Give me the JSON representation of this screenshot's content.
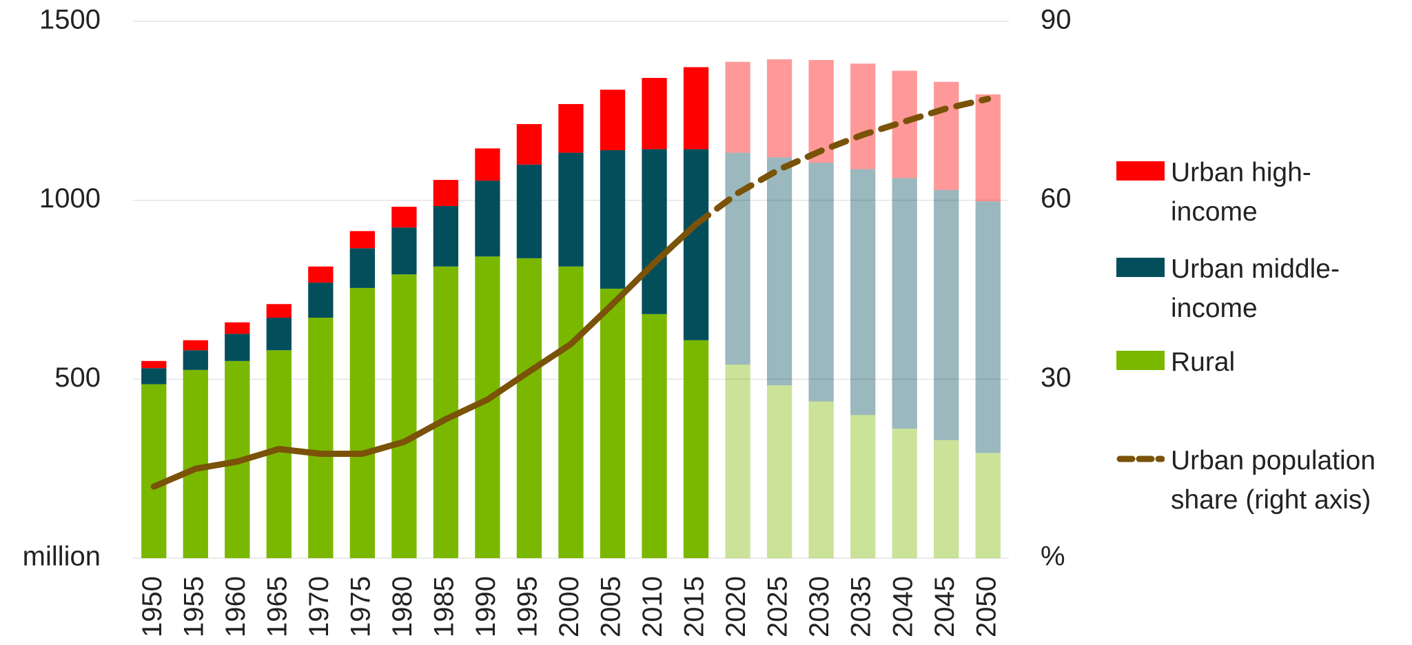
{
  "chart_data": {
    "type": "bar",
    "categories": [
      "1950",
      "1955",
      "1960",
      "1965",
      "1970",
      "1975",
      "1980",
      "1985",
      "1990",
      "1995",
      "2000",
      "2005",
      "2010",
      "2015",
      "2020",
      "2025",
      "2030",
      "2035",
      "2040",
      "2045",
      "2050"
    ],
    "projected_from": "2020",
    "series": [
      {
        "name": "Rural",
        "color": "#7ab800",
        "values": [
          486,
          526,
          551,
          581,
          672,
          755,
          793,
          815,
          843,
          838,
          815,
          753,
          682,
          609,
          541,
          483,
          438,
          400,
          362,
          330,
          294
        ]
      },
      {
        "name": "Urban middle-income",
        "color": "#034e5b",
        "values": [
          45,
          55,
          76,
          91,
          98,
          111,
          131,
          169,
          212,
          262,
          318,
          387,
          461,
          534,
          592,
          637,
          667,
          687,
          700,
          699,
          703
        ]
      },
      {
        "name": "Urban high-income",
        "color": "#ff0000",
        "values": [
          20,
          28,
          32,
          38,
          45,
          48,
          58,
          73,
          90,
          113,
          136,
          169,
          199,
          229,
          254,
          274,
          287,
          295,
          300,
          302,
          299
        ]
      },
      {
        "name": "Urban population share (right axis)",
        "type": "line",
        "axis": "y2",
        "color": "#7a5208",
        "values": [
          12,
          15,
          16.2,
          18.3,
          17.5,
          17.5,
          19.5,
          23.3,
          26.6,
          31.3,
          35.9,
          42.6,
          49.5,
          56,
          61.2,
          65.2,
          68.3,
          71,
          73.2,
          75.4,
          77
        ]
      }
    ],
    "ylim": [
      0,
      1500
    ],
    "yticks": [
      {
        "value": 0,
        "label": "million"
      },
      500,
      1000,
      1500
    ],
    "y2lim": [
      0,
      90
    ],
    "y2ticks": [
      {
        "value": 0,
        "label": "%"
      },
      30,
      60,
      90
    ],
    "grid": true
  }
}
